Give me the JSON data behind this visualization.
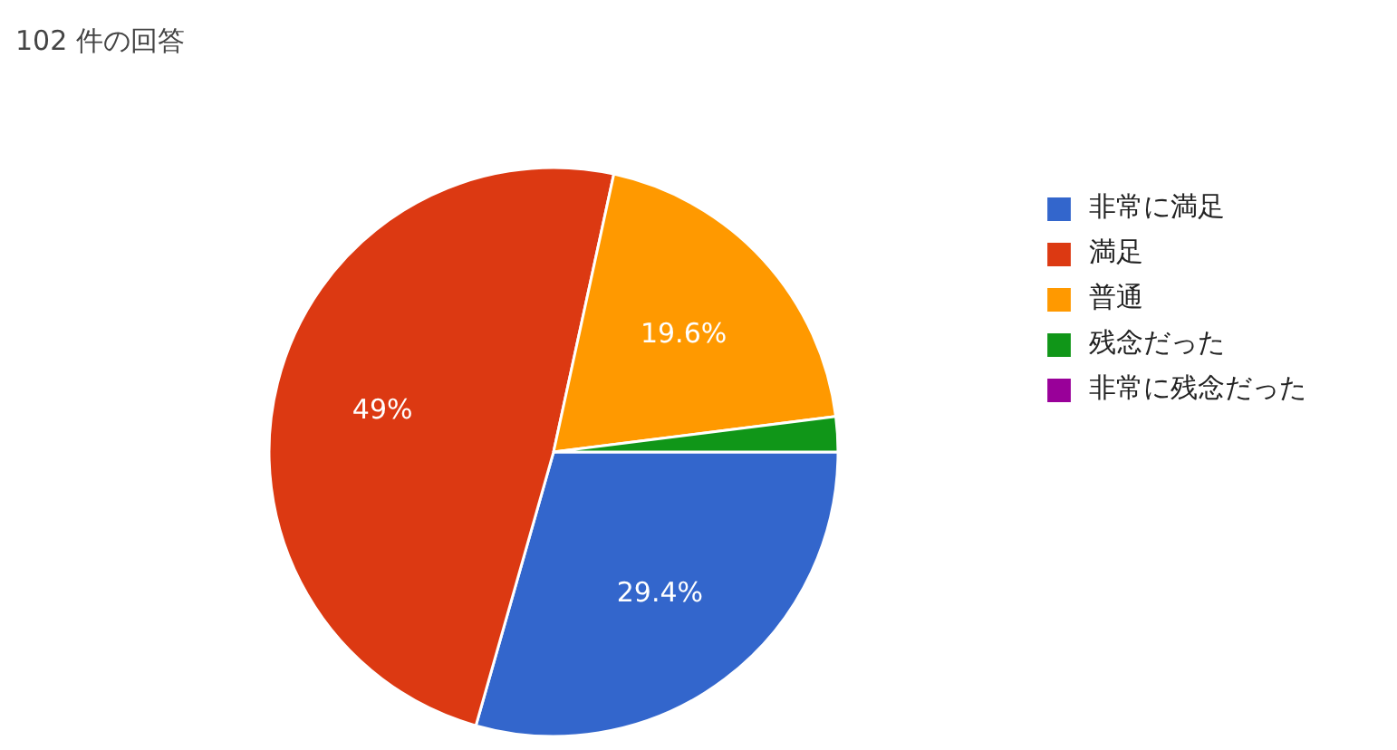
{
  "chart_data": {
    "type": "pie",
    "title": "102 件の回答",
    "categories": [
      "非常に満足",
      "満足",
      "普通",
      "残念だった",
      "非常に残念だった"
    ],
    "values": [
      29.4,
      49,
      19.6,
      2.0,
      0
    ],
    "colors": [
      "#3366cc",
      "#dc3912",
      "#ff9900",
      "#109618",
      "#990099"
    ],
    "value_labels": [
      "29.4%",
      "49%",
      "19.6%",
      null,
      null
    ],
    "legend": "right"
  }
}
